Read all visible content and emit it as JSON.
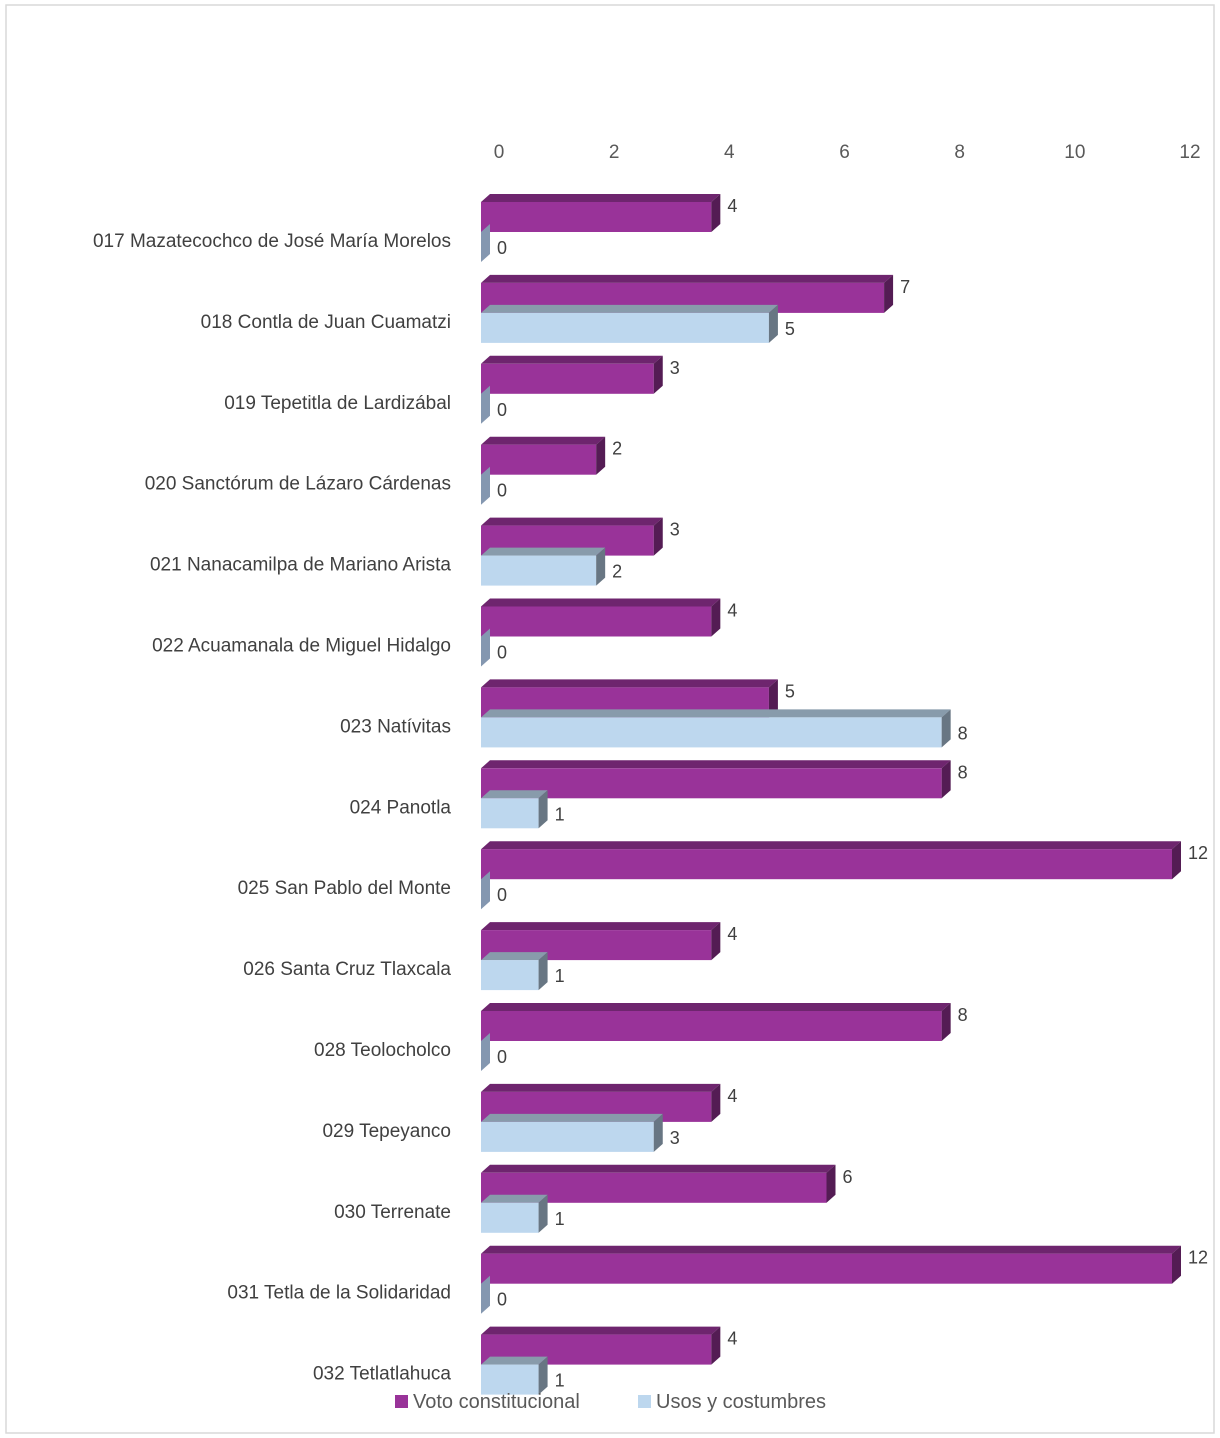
{
  "chart_data": {
    "type": "bar",
    "orientation": "horizontal",
    "style": "3d",
    "categories": [
      "017 Mazatecochco de José María Morelos",
      "018 Contla de Juan Cuamatzi",
      "019 Tepetitla de Lardizábal",
      "020 Sanctórum de Lázaro Cárdenas",
      "021 Nanacamilpa de Mariano Arista",
      "022 Acuamanala de Miguel Hidalgo",
      "023 Natívitas",
      "024 Panotla",
      "025 San Pablo del Monte",
      "026 Santa Cruz Tlaxcala",
      "028 Teolocholco",
      "029 Tepeyanco",
      "030 Terrenate",
      "031 Tetla de la Solidaridad",
      "032 Tetlatlahuca"
    ],
    "series": [
      {
        "name": "Voto constitucional",
        "color": "#993399",
        "values": [
          4,
          7,
          3,
          2,
          3,
          4,
          5,
          8,
          12,
          4,
          8,
          4,
          6,
          12,
          4
        ]
      },
      {
        "name": "Usos y costumbres",
        "color": "#BDD7EE",
        "values": [
          0,
          5,
          0,
          0,
          2,
          0,
          8,
          1,
          0,
          1,
          0,
          3,
          1,
          0,
          1
        ]
      }
    ],
    "x_ticks": [
      "0",
      "2",
      "4",
      "6",
      "8",
      "10",
      "12"
    ],
    "xlim": [
      0,
      12
    ],
    "axis_position": "top",
    "grid": false,
    "legend_position": "bottom"
  }
}
